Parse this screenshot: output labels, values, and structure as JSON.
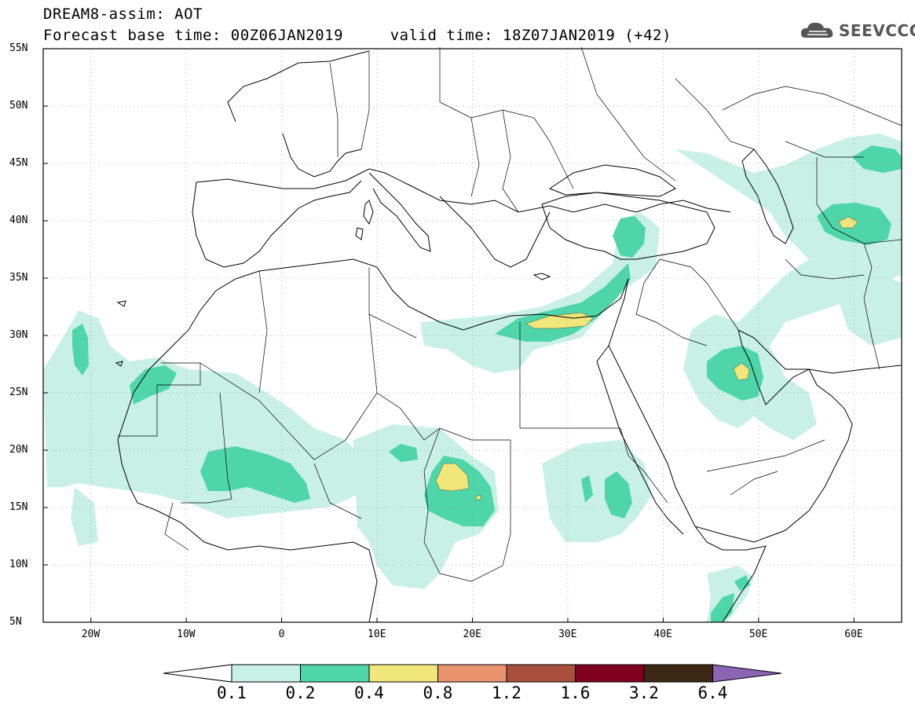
{
  "header": {
    "title_line1": "DREAM8-assim: AOT",
    "title_line2": "Forecast base time: 00Z06JAN2019     valid time: 18Z07JAN2019 (+42)"
  },
  "logo": {
    "text": "SEEVCCC",
    "icon": "cloud-icon"
  },
  "map": {
    "lat_labels": [
      "55N",
      "50N",
      "45N",
      "40N",
      "35N",
      "30N",
      "25N",
      "20N",
      "15N",
      "10N",
      "5N"
    ],
    "lon_labels": [
      "20W",
      "10W",
      "0",
      "10E",
      "20E",
      "30E",
      "40E",
      "50E",
      "60E"
    ],
    "colors": {
      "land": "#ffffff",
      "border": "#000000",
      "grid": "#999999"
    }
  },
  "colorbar": {
    "labels": [
      "0.1",
      "0.2",
      "0.4",
      "0.8",
      "1.2",
      "1.6",
      "3.2",
      "6.4"
    ],
    "colors": [
      "#ffffff",
      "#c8f0e6",
      "#4ed6a8",
      "#f0e67a",
      "#e8926e",
      "#a8503c",
      "#800020",
      "#3c2814",
      "#8c64b4"
    ]
  }
}
